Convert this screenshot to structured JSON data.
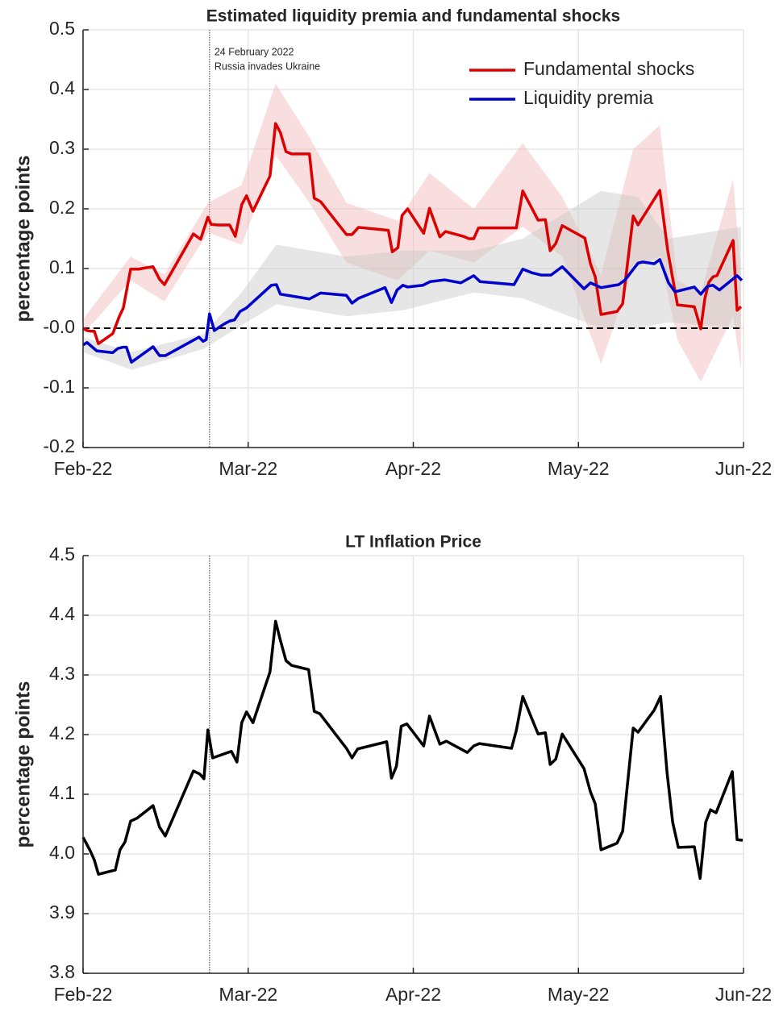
{
  "chart_data": [
    {
      "type": "line",
      "title": "Estimated liquidity premia and fundamental shocks",
      "ylabel": "percentage points",
      "xlim": [
        0,
        4
      ],
      "xticks": [
        {
          "value": 0,
          "label": "Feb-22"
        },
        {
          "value": 1,
          "label": "Mar-22"
        },
        {
          "value": 2,
          "label": "Apr-22"
        },
        {
          "value": 3,
          "label": "May-22"
        },
        {
          "value": 4,
          "label": "Jun-22"
        }
      ],
      "ylim": [
        -0.2,
        0.5
      ],
      "yticks": [
        -0.2,
        -0.1,
        {
          "value": 0,
          "label": "-0.0"
        },
        0.1,
        0.2,
        0.3,
        0.4,
        0.5
      ],
      "grid": true,
      "legend": "upper right",
      "hline": 0,
      "event": {
        "x": 0.766,
        "labels": [
          "24 February 2022",
          "Russia invades Ukraine"
        ]
      },
      "series": [
        {
          "name": "Fundamental shocks",
          "color": "#dd0000",
          "x": [
            0,
            0.024,
            0.044,
            0.068,
            0.093,
            0.18,
            0.22,
            0.244,
            0.288,
            0.337,
            0.376,
            0.424,
            0.463,
            0.493,
            0.668,
            0.712,
            0.756,
            0.776,
            0.815,
            0.888,
            0.922,
            0.961,
            0.99,
            1.029,
            1.132,
            1.166,
            1.195,
            1.229,
            1.263,
            1.371,
            1.4,
            1.439,
            1.595,
            1.629,
            1.668,
            1.849,
            1.873,
            1.907,
            1.932,
            1.966,
            2.063,
            2.098,
            2.161,
            2.195,
            2.302,
            2.337,
            2.366,
            2.395,
            2.595,
            2.624,
            2.663,
            2.756,
            2.8,
            2.829,
            2.863,
            2.902,
            3.039,
            3.073,
            3.102,
            3.137,
            3.234,
            3.268,
            3.332,
            3.361,
            3.493,
            3.541,
            3.6,
            3.702,
            3.741,
            3.766,
            3.79,
            3.815,
            3.839,
            3.937,
            3.961,
            3.985
          ],
          "values": [
            0,
            -0.004,
            -0.005,
            -0.005,
            -0.026,
            -0.009,
            0.02,
            0.034,
            0.099,
            0.099,
            0.101,
            0.103,
            0.082,
            0.073,
            0.158,
            0.149,
            0.186,
            0.174,
            0.173,
            0.173,
            0.154,
            0.207,
            0.222,
            0.196,
            0.255,
            0.343,
            0.328,
            0.296,
            0.292,
            0.292,
            0.218,
            0.212,
            0.157,
            0.157,
            0.169,
            0.164,
            0.128,
            0.135,
            0.189,
            0.2,
            0.159,
            0.201,
            0.153,
            0.162,
            0.154,
            0.15,
            0.15,
            0.168,
            0.168,
            0.168,
            0.23,
            0.181,
            0.182,
            0.13,
            0.142,
            0.172,
            0.151,
            0.108,
            0.086,
            0.023,
            0.028,
            0.041,
            0.188,
            0.173,
            0.231,
            0.13,
            0.039,
            0.036,
            -0.001,
            0.05,
            0.077,
            0.086,
            0.088,
            0.147,
            0.03,
            0.036
          ],
          "band": {
            "color": "#f2b6b9",
            "x": [
              0,
              0.288,
              0.493,
              0.756,
              0.961,
              1.166,
              1.371,
              1.595,
              1.907,
              2.098,
              2.366,
              2.663,
              2.902,
              3.137,
              3.332,
              3.493,
              3.6,
              3.741,
              3.937,
              3.985
            ],
            "upper": [
              0.015,
              0.12,
              0.09,
              0.21,
              0.24,
              0.41,
              0.32,
              0.21,
              0.18,
              0.26,
              0.2,
              0.31,
              0.22,
              0.09,
              0.3,
              0.34,
              0.08,
              0.06,
              0.25,
              0.09
            ],
            "lower": [
              -0.01,
              0.08,
              0.045,
              0.16,
              0.14,
              0.29,
              0.21,
              0.11,
              0.08,
              0.13,
              0.11,
              0.17,
              0.12,
              -0.06,
              0.1,
              0.12,
              -0.02,
              -0.09,
              0.02,
              -0.07
            ]
          }
        },
        {
          "name": "Liquidity premia",
          "color": "#0000cc",
          "x": [
            0,
            0.024,
            0.083,
            0.18,
            0.21,
            0.239,
            0.263,
            0.293,
            0.424,
            0.463,
            0.498,
            0.702,
            0.727,
            0.746,
            0.766,
            0.795,
            0.854,
            0.888,
            0.917,
            0.951,
            0.99,
            1.141,
            1.171,
            1.195,
            1.371,
            1.439,
            1.595,
            1.629,
            1.668,
            1.829,
            1.868,
            1.902,
            1.937,
            1.966,
            2.059,
            2.102,
            2.19,
            2.288,
            2.366,
            2.405,
            2.571,
            2.61,
            2.663,
            2.717,
            2.776,
            2.834,
            2.902,
            3.034,
            3.073,
            3.137,
            3.244,
            3.283,
            3.361,
            3.39,
            3.459,
            3.493,
            3.546,
            3.585,
            3.702,
            3.741,
            3.78,
            3.815,
            3.854,
            3.961,
            3.99
          ],
          "values": [
            -0.028,
            -0.024,
            -0.038,
            -0.041,
            -0.034,
            -0.032,
            -0.032,
            -0.057,
            -0.031,
            -0.046,
            -0.046,
            -0.015,
            -0.022,
            -0.019,
            0.024,
            -0.004,
            0.007,
            0.012,
            0.014,
            0.028,
            0.034,
            0.072,
            0.073,
            0.057,
            0.049,
            0.059,
            0.055,
            0.042,
            0.05,
            0.068,
            0.043,
            0.064,
            0.072,
            0.069,
            0.072,
            0.078,
            0.081,
            0.076,
            0.088,
            0.078,
            0.074,
            0.073,
            0.099,
            0.093,
            0.089,
            0.089,
            0.103,
            0.066,
            0.076,
            0.068,
            0.073,
            0.081,
            0.109,
            0.111,
            0.108,
            0.115,
            0.076,
            0.061,
            0.069,
            0.057,
            0.07,
            0.072,
            0.064,
            0.088,
            0.08
          ],
          "band": {
            "color": "#c8c8c8",
            "x": [
              0,
              0.293,
              0.727,
              0.961,
              1.171,
              1.595,
              1.937,
              2.366,
              2.663,
              3.137,
              3.361,
              3.546,
              3.985
            ],
            "upper": [
              -0.015,
              -0.04,
              -0.01,
              0.06,
              0.14,
              0.12,
              0.13,
              0.13,
              0.15,
              0.23,
              0.22,
              0.15,
              0.17
            ],
            "lower": [
              -0.04,
              -0.07,
              -0.035,
              0.005,
              0.04,
              0.02,
              0.03,
              0.06,
              0.05,
              0,
              0,
              0.01,
              0
            ]
          }
        }
      ]
    },
    {
      "type": "line",
      "title": "LT Inflation Price",
      "ylabel": "percentage points",
      "xlim": [
        0,
        4
      ],
      "xticks": [
        {
          "value": 0,
          "label": "Feb-22"
        },
        {
          "value": 1,
          "label": "Mar-22"
        },
        {
          "value": 2,
          "label": "Apr-22"
        },
        {
          "value": 3,
          "label": "May-22"
        },
        {
          "value": 4,
          "label": "Jun-22"
        }
      ],
      "ylim": [
        3.8,
        4.5
      ],
      "yticks": [
        3.8,
        3.9,
        {
          "value": 4,
          "label": "4.0"
        },
        4.1,
        4.2,
        4.3,
        4.4,
        4.5
      ],
      "grid": true,
      "event": {
        "x": 0.766
      },
      "series": [
        {
          "color": "#000000",
          "x": [
            0,
            0.044,
            0.068,
            0.093,
            0.195,
            0.224,
            0.254,
            0.288,
            0.327,
            0.424,
            0.463,
            0.498,
            0.668,
            0.707,
            0.732,
            0.756,
            0.785,
            0.898,
            0.932,
            0.961,
            0.99,
            1.029,
            1.132,
            1.166,
            1.195,
            1.229,
            1.263,
            1.366,
            1.4,
            1.434,
            1.595,
            1.629,
            1.663,
            1.839,
            1.868,
            1.898,
            1.927,
            1.961,
            2.063,
            2.098,
            2.161,
            2.2,
            2.327,
            2.366,
            2.4,
            2.595,
            2.624,
            2.663,
            2.756,
            2.8,
            2.829,
            2.863,
            2.902,
            3.034,
            3.073,
            3.102,
            3.137,
            3.234,
            3.268,
            3.332,
            3.361,
            3.459,
            3.498,
            3.537,
            3.571,
            3.605,
            3.702,
            3.737,
            3.771,
            3.8,
            3.834,
            3.932,
            3.961,
            3.995
          ],
          "values": [
            4.028,
            4.005,
            3.99,
            3.966,
            3.973,
            4.007,
            4.02,
            4.055,
            4.06,
            4.081,
            4.045,
            4.03,
            4.139,
            4.134,
            4.126,
            4.208,
            4.161,
            4.172,
            4.154,
            4.22,
            4.238,
            4.22,
            4.305,
            4.39,
            4.358,
            4.324,
            4.316,
            4.309,
            4.239,
            4.235,
            4.177,
            4.161,
            4.176,
            4.188,
            4.127,
            4.147,
            4.214,
            4.218,
            4.181,
            4.231,
            4.184,
            4.189,
            4.17,
            4.181,
            4.185,
            4.177,
            4.207,
            4.264,
            4.201,
            4.203,
            4.15,
            4.159,
            4.201,
            4.143,
            4.104,
            4.084,
            4.007,
            4.018,
            4.038,
            4.211,
            4.204,
            4.241,
            4.264,
            4.136,
            4.053,
            4.011,
            4.012,
            3.959,
            4.053,
            4.074,
            4.069,
            4.138,
            4.024,
            4.023
          ]
        }
      ]
    }
  ]
}
